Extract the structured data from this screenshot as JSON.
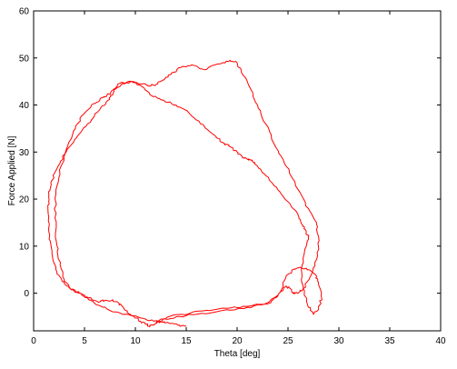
{
  "chart_data": {
    "type": "line",
    "title": "",
    "xlabel": "Theta [deg]",
    "ylabel": "Force Applied [N]",
    "xlim": [
      0,
      40
    ],
    "ylim": [
      -8,
      60
    ],
    "xticks": [
      0,
      5,
      10,
      15,
      20,
      25,
      30,
      35,
      40
    ],
    "yticks": [
      0,
      10,
      20,
      30,
      40,
      50,
      60
    ],
    "grid": false,
    "line_color": "#ff0000",
    "axis_color": "#000000",
    "series": [
      {
        "x": [
          15.0,
          14.2,
          13.0,
          12.3,
          11.0,
          9.5,
          8.0,
          6.8,
          5.6,
          4.6,
          3.6,
          2.8,
          2.2,
          1.8,
          1.5,
          1.4,
          1.5,
          1.8,
          2.4,
          3.2,
          4.2,
          5.3,
          6.5,
          7.3,
          7.8,
          8.3,
          9.3,
          10.5,
          11.5,
          12.5,
          13.5,
          14.5,
          15.5,
          16.8,
          17.8,
          18.6,
          19.3,
          20.0,
          21.0,
          22.0,
          22.8,
          23.8,
          24.8,
          26.0,
          27.0,
          27.8,
          28.0,
          27.9,
          27.3,
          26.5,
          26.0,
          25.5,
          25.2,
          24.8,
          24.4,
          23.0,
          21.0,
          19.0,
          16.5,
          14.5,
          12.5,
          11.8,
          11.4,
          11.0,
          10.5,
          9.5,
          8.8,
          8.3,
          7.7,
          7.0,
          6.3,
          5.3,
          4.5,
          3.6,
          3.0,
          2.6,
          2.3,
          2.1,
          2.2,
          2.7,
          3.3,
          4.1,
          4.9,
          5.7,
          6.5,
          7.2,
          8.0,
          8.8,
          9.6,
          10.6,
          11.6,
          12.8,
          14.0,
          15.2,
          16.4,
          17.5,
          18.6,
          19.4,
          20.0,
          20.5,
          21.0,
          21.5,
          22.0,
          22.8,
          24.0,
          25.2,
          26.0,
          26.4,
          26.7,
          27.0,
          26.8,
          26.3,
          26.5,
          27.0,
          27.5,
          28.0,
          28.3,
          28.0,
          27.7,
          27.0,
          26.2,
          25.5,
          24.8,
          24.3,
          23.8,
          23.0,
          21.0,
          18.5,
          16.0,
          14.0,
          13.0,
          12.0
        ],
        "y": [
          -7.0,
          -6.8,
          -6.3,
          -6.0,
          -5.5,
          -4.7,
          -4.0,
          -3.0,
          -1.5,
          0.0,
          1.0,
          2.5,
          5.0,
          9.0,
          13.0,
          18.0,
          21.0,
          24.0,
          27.0,
          30.0,
          33.0,
          36.0,
          39.0,
          41.0,
          42.5,
          44.5,
          45.0,
          44.5,
          44.0,
          45.0,
          46.5,
          48.0,
          48.5,
          47.5,
          48.5,
          49.0,
          49.5,
          49.0,
          45.0,
          40.0,
          36.0,
          31.0,
          27.0,
          22.0,
          18.0,
          15.0,
          12.0,
          8.0,
          4.0,
          1.0,
          0.0,
          0.0,
          1.0,
          1.5,
          0.5,
          -2.0,
          -2.8,
          -3.2,
          -3.8,
          -4.5,
          -5.5,
          -6.8,
          -7.0,
          -6.5,
          -6.0,
          -4.5,
          -3.0,
          -2.0,
          -1.5,
          -1.5,
          -1.8,
          -1.0,
          0.0,
          1.0,
          3.0,
          6.0,
          10.0,
          16.0,
          22.0,
          27.0,
          31.0,
          35.0,
          38.0,
          40.0,
          41.0,
          42.0,
          43.5,
          44.5,
          45.0,
          44.0,
          42.0,
          41.0,
          40.0,
          38.5,
          36.0,
          34.0,
          32.0,
          31.0,
          30.0,
          29.0,
          28.5,
          28.0,
          27.0,
          25.0,
          22.0,
          19.0,
          16.5,
          14.5,
          13.5,
          12.0,
          10.0,
          5.0,
          1.0,
          -3.0,
          -4.5,
          -3.5,
          -1.0,
          2.0,
          4.0,
          5.0,
          5.5,
          5.0,
          3.5,
          0.5,
          -1.0,
          -2.3,
          -3.0,
          -3.7,
          -4.5,
          -5.0,
          -5.5,
          -6.2
        ]
      }
    ]
  }
}
